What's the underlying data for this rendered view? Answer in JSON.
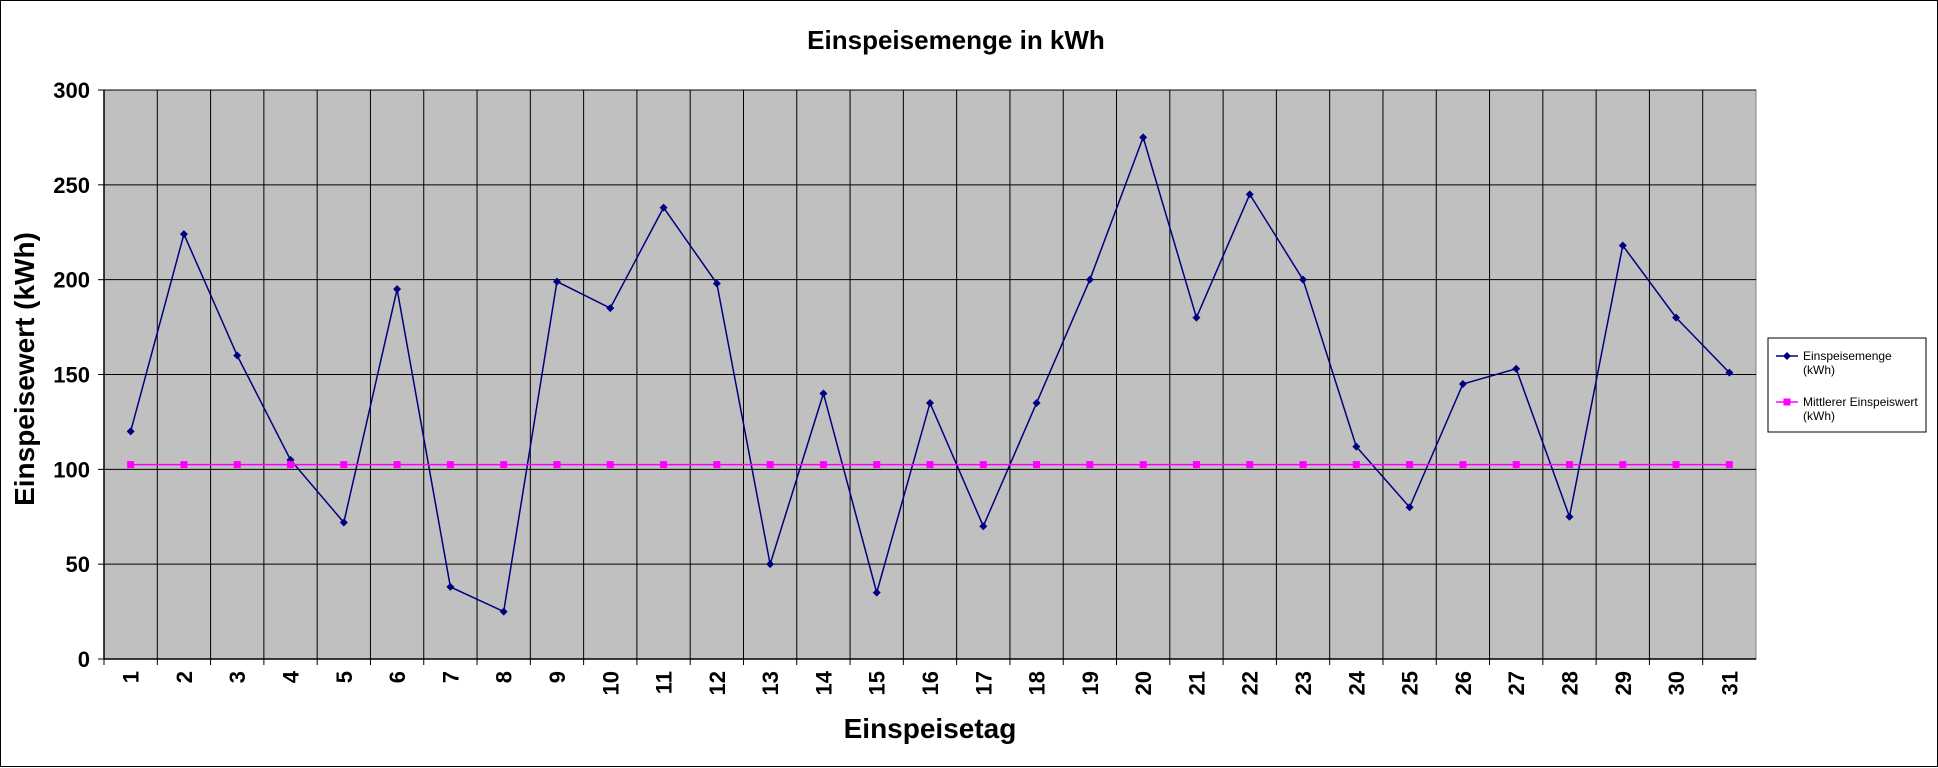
{
  "chart_data": {
    "type": "line",
    "title": "Einspeisemenge in kWh",
    "xlabel": "Einspeisetag",
    "ylabel": "Einspeisewert  (kWh)",
    "categories": [
      "1",
      "2",
      "3",
      "4",
      "5",
      "6",
      "7",
      "8",
      "9",
      "10",
      "11",
      "12",
      "13",
      "14",
      "15",
      "16",
      "17",
      "18",
      "19",
      "20",
      "21",
      "22",
      "23",
      "24",
      "25",
      "26",
      "27",
      "28",
      "29",
      "30",
      "31"
    ],
    "ylim": [
      0,
      300
    ],
    "yticks": [
      0,
      50,
      100,
      150,
      200,
      250,
      300
    ],
    "grid": true,
    "legend_position": "right",
    "series": [
      {
        "name": "Einspeisemenge\n(kWh)",
        "name_lines": [
          "Einspeisemenge",
          "(kWh)"
        ],
        "color": "#000080",
        "marker": "diamond",
        "values": [
          120,
          224,
          160,
          105,
          72,
          195,
          38,
          25,
          199,
          185,
          238,
          198,
          50,
          140,
          35,
          135,
          70,
          135,
          200,
          275,
          180,
          245,
          200,
          112,
          80,
          145,
          153,
          75,
          218,
          180,
          151
        ]
      },
      {
        "name": "Mittlerer Einspeiswert\n(kWh)",
        "name_lines": [
          "Mittlerer Einspeiswert",
          "(kWh)"
        ],
        "color": "#FF00FF",
        "marker": "square",
        "values": [
          102.5,
          102.5,
          102.5,
          102.5,
          102.5,
          102.5,
          102.5,
          102.5,
          102.5,
          102.5,
          102.5,
          102.5,
          102.5,
          102.5,
          102.5,
          102.5,
          102.5,
          102.5,
          102.5,
          102.5,
          102.5,
          102.5,
          102.5,
          102.5,
          102.5,
          102.5,
          102.5,
          102.5,
          102.5,
          102.5,
          102.5
        ]
      }
    ],
    "plot_background": "#C0C0C0"
  }
}
